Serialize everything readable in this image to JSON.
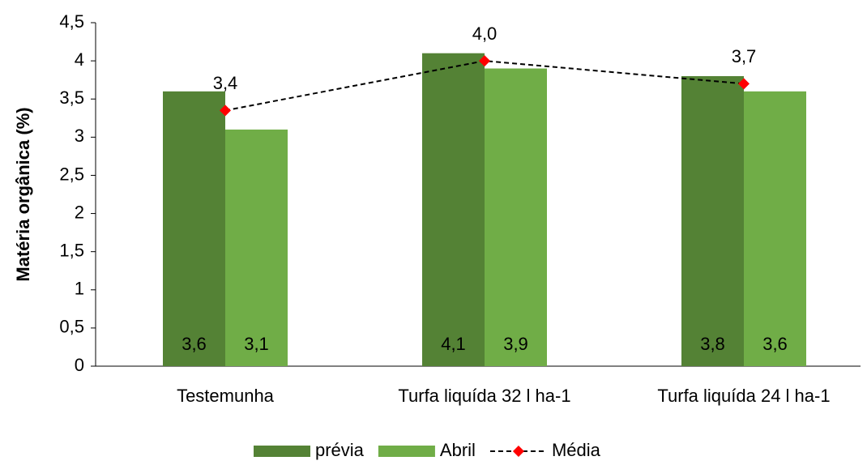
{
  "chart_data": {
    "type": "bar",
    "y_label": "Matéria orgânica (%)",
    "categories": [
      "Testemunha",
      "Turfa liquída 32 l ha-1",
      "Turfa liquída 24 l ha-1"
    ],
    "series": [
      {
        "name": "prévia",
        "type": "bar",
        "color": "#548235",
        "values": [
          3.6,
          4.1,
          3.8
        ],
        "value_labels": [
          "3,6",
          "4,1",
          "3,8"
        ]
      },
      {
        "name": "Abril",
        "type": "bar",
        "color": "#70ad47",
        "values": [
          3.1,
          3.9,
          3.6
        ],
        "value_labels": [
          "3,1",
          "3,9",
          "3,6"
        ]
      },
      {
        "name": "Média",
        "type": "line",
        "color": "#000000",
        "marker_color": "#ff0000",
        "values": [
          3.35,
          4.0,
          3.7
        ],
        "value_labels": [
          "3,4",
          "4,0",
          "3,7"
        ]
      }
    ],
    "ylim": [
      0,
      4.5
    ],
    "yticks": [
      0,
      {
        "value": 0.5,
        "label": "0,5"
      },
      1,
      {
        "value": 1.5,
        "label": "1,5"
      },
      2,
      {
        "value": 2.5,
        "label": "2,5"
      },
      3,
      {
        "value": 3.5,
        "label": "3,5"
      },
      4,
      {
        "value": 4.5,
        "label": "4,5"
      }
    ]
  }
}
